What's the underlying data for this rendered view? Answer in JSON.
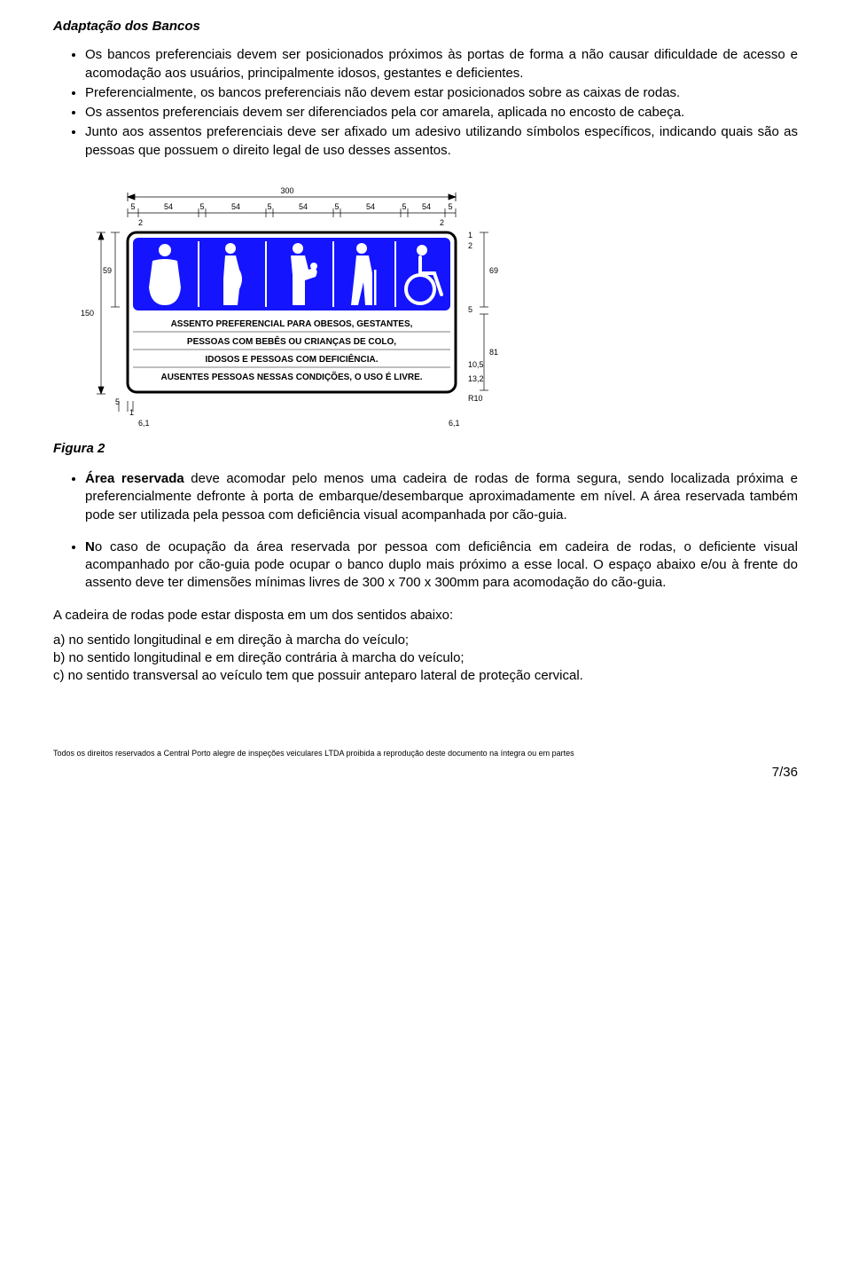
{
  "title": "Adaptação dos Bancos",
  "bullets1": [
    "Os bancos preferenciais devem ser posicionados próximos às portas de forma a não causar dificuldade de acesso e acomodação aos usuários, principalmente idosos, gestantes e deficientes.",
    "Preferencialmente, os bancos preferenciais não devem estar posicionados sobre as caixas de rodas.",
    "Os assentos preferenciais devem ser diferenciados pela cor amarela, aplicada no encosto de cabeça.",
    "Junto aos assentos preferenciais deve ser afixado um adesivo utilizando símbolos específicos, indicando quais são as pessoas que possuem o direito legal de uso desses assentos."
  ],
  "figure": {
    "label": "Figura 2",
    "dims": {
      "total_w": "300",
      "col_w": "54",
      "gap": "5",
      "left_pad": "2",
      "right_pad": "2",
      "side_h": "59",
      "full_h": "150",
      "right_top": "69",
      "right_bot": "81",
      "r_label": "10,5",
      "r_label2": "13,2",
      "r10": "R10",
      "tiny1": "1",
      "tiny2": "2",
      "tiny5": "5",
      "bot61": "6,1"
    },
    "sign_lines": [
      "ASSENTO PREFERENCIAL PARA OBESOS, GESTANTES,",
      "PESSOAS COM BEBÊS OU CRIANÇAS DE COLO,",
      "IDOSOS E PESSOAS COM DEFICIÊNCIA.",
      "AUSENTES PESSOAS NESSAS CONDIÇÕES, O USO É LIVRE."
    ],
    "colors": {
      "panel": "#1414ff",
      "border": "#000000",
      "icon": "#ffffff",
      "bg": "#ffffff",
      "dim": "#000000"
    }
  },
  "bullets2": [
    "Área reservada deve acomodar pelo menos uma cadeira de rodas de forma segura, sendo localizada próxima e preferencialmente defronte à porta de embarque/desembarque aproximadamente em nível. A área reservada também pode ser utilizada pela pessoa com  deficiência visual acompanhada por cão-guia.",
    "No caso de ocupação da área reservada por pessoa com deficiência em cadeira de rodas, o deficiente visual acompanhado por cão-guia pode ocupar o banco duplo mais próximo a esse  local. O espaço abaixo e/ou à frente do assento deve ter dimensões mínimas livres de 300 x 700 x 300mm para acomodação do cão-guia."
  ],
  "bullets2_bold": [
    "Área reservada",
    "N"
  ],
  "plain_intro": "A cadeira de rodas pode estar disposta em um dos sentidos abaixo:",
  "plain_list": [
    "a) no sentido longitudinal e em direção à marcha do veículo;",
    "b) no sentido longitudinal e em direção contrária à marcha do veículo;",
    "c) no sentido transversal ao veículo tem que possuir anteparo lateral de proteção cervical."
  ],
  "footer": "Todos os  direitos reservados a Central Porto alegre de inspeções veiculares LTDA proibida a reprodução deste documento na íntegra ou em partes",
  "page": "7/36"
}
